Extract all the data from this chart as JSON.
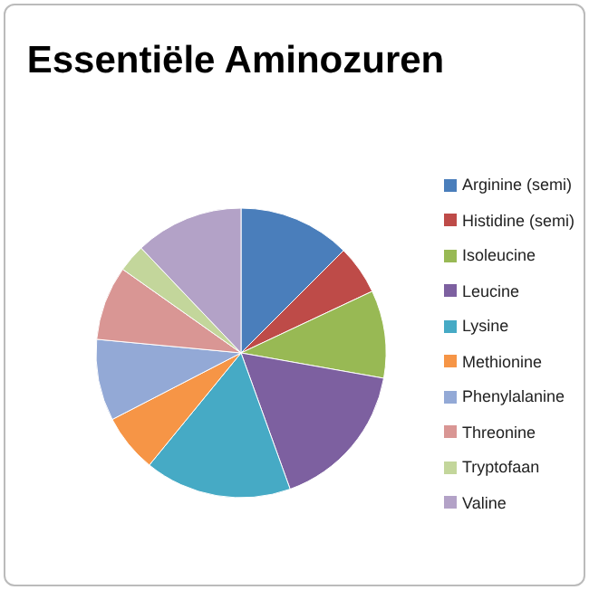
{
  "chart_data": {
    "type": "pie",
    "title": "Essentiële Aminozuren",
    "categories": [
      "Arginine (semi)",
      "Histidine (semi)",
      "Isoleucine",
      "Leucine",
      "Lysine",
      "Methionine",
      "Phenylalanine",
      "Threonine",
      "Tryptofaan",
      "Valine"
    ],
    "values": [
      12.5,
      5.5,
      9.8,
      16.7,
      16.4,
      6.5,
      9.1,
      8.3,
      3.1,
      12.1
    ],
    "colors": [
      "#4a7ebb",
      "#be4b48",
      "#98b954",
      "#7d60a0",
      "#46aac5",
      "#f69546",
      "#93a9d6",
      "#d99694",
      "#c3d69b",
      "#b3a2c7"
    ],
    "legend": "right"
  }
}
